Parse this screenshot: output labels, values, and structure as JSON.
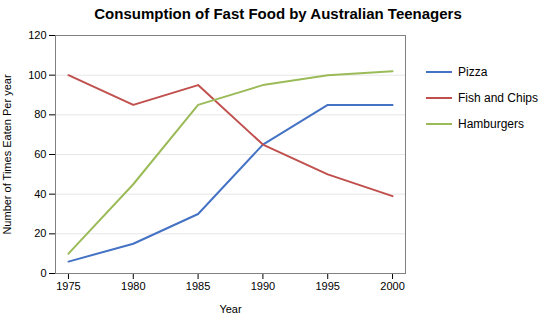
{
  "chart_data": {
    "type": "line",
    "title": "Consumption of Fast Food by Australian Teenagers",
    "xlabel": "Year",
    "ylabel": "Number of Times Eaten Per year",
    "x": [
      1975,
      1980,
      1985,
      1990,
      1995,
      2000
    ],
    "series": [
      {
        "name": "Pizza",
        "color": "#4472C4",
        "values": [
          6,
          15,
          30,
          65,
          85,
          85
        ]
      },
      {
        "name": "Fish and Chips",
        "color": "#C0504D",
        "values": [
          100,
          85,
          95,
          65,
          50,
          39
        ]
      },
      {
        "name": "Hamburgers",
        "color": "#9BBB59",
        "values": [
          10,
          45,
          85,
          95,
          100,
          102
        ]
      }
    ],
    "xlim": [
      1974,
      2001
    ],
    "xticks": [
      1975,
      1980,
      1985,
      1990,
      1995,
      2000
    ],
    "ylim": [
      0,
      120
    ],
    "yticks": [
      0,
      20,
      40,
      60,
      80,
      100,
      120
    ],
    "grid": "y",
    "legend": "right"
  }
}
